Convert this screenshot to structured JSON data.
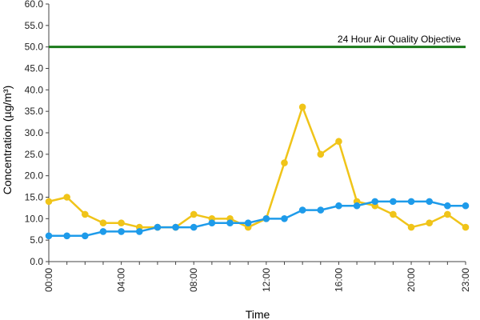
{
  "chart_data": {
    "type": "line",
    "title": "",
    "xlabel": "Time",
    "ylabel": "Concentration (µg/m³)",
    "ylim": [
      0,
      60
    ],
    "y_ticks": [
      "0.0",
      "5.0",
      "10.0",
      "15.0",
      "20.0",
      "25.0",
      "30.0",
      "35.0",
      "40.0",
      "45.0",
      "50.0",
      "55.0",
      "60.0"
    ],
    "x": [
      "00:00",
      "01:00",
      "02:00",
      "03:00",
      "04:00",
      "05:00",
      "06:00",
      "07:00",
      "08:00",
      "09:00",
      "10:00",
      "11:00",
      "12:00",
      "13:00",
      "14:00",
      "15:00",
      "16:00",
      "17:00",
      "18:00",
      "19:00",
      "20:00",
      "21:00",
      "22:00",
      "23:00"
    ],
    "x_tick_labels": [
      "00:00",
      "04:00",
      "08:00",
      "12:00",
      "16:00",
      "20:00",
      "23:00"
    ],
    "grid": false,
    "legend": "none",
    "series": [
      {
        "color": "#f0c419",
        "values": [
          14,
          15,
          11,
          9,
          9,
          8,
          8,
          8,
          11,
          10,
          10,
          8,
          10,
          23,
          36,
          25,
          28,
          14,
          13,
          11,
          8,
          9,
          11,
          8
        ]
      },
      {
        "color": "#1e9bea",
        "values": [
          6,
          6,
          6,
          7,
          7,
          7,
          8,
          8,
          8,
          9,
          9,
          9,
          10,
          10,
          12,
          12,
          13,
          13,
          14,
          14,
          14,
          14,
          13,
          13
        ]
      }
    ],
    "reference_line": {
      "value": 50,
      "label": "24 Hour Air Quality Objective",
      "color": "#1a7a1a"
    }
  }
}
